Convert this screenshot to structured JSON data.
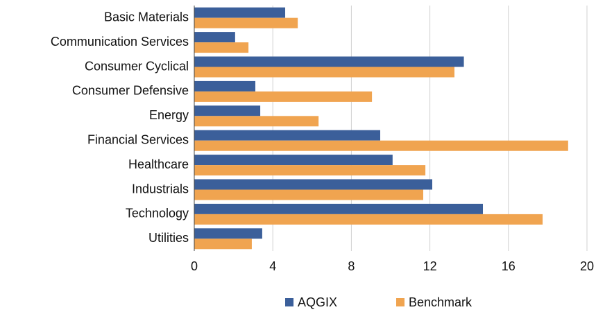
{
  "chart_data": {
    "type": "bar",
    "orientation": "horizontal",
    "categories": [
      "Basic Materials",
      "Communication Services",
      "Consumer Cyclical",
      "Consumer Defensive",
      "Energy",
      "Financial Services",
      "Healthcare",
      "Industrials",
      "Technology",
      "Utilities"
    ],
    "series": [
      {
        "name": "AQGIX",
        "color": "#3b5f9a",
        "values": [
          4.63,
          2.08,
          13.73,
          3.11,
          3.36,
          9.47,
          10.1,
          12.12,
          14.7,
          3.46
        ]
      },
      {
        "name": "Benchmark",
        "color": "#f0a450",
        "values": [
          5.27,
          2.76,
          13.25,
          9.05,
          6.33,
          19.04,
          11.77,
          11.66,
          17.74,
          2.93
        ]
      }
    ],
    "xlim": [
      0,
      20
    ],
    "xticks": [
      0,
      4,
      8,
      12,
      16,
      20
    ],
    "grid": true,
    "legend": "bottom"
  }
}
